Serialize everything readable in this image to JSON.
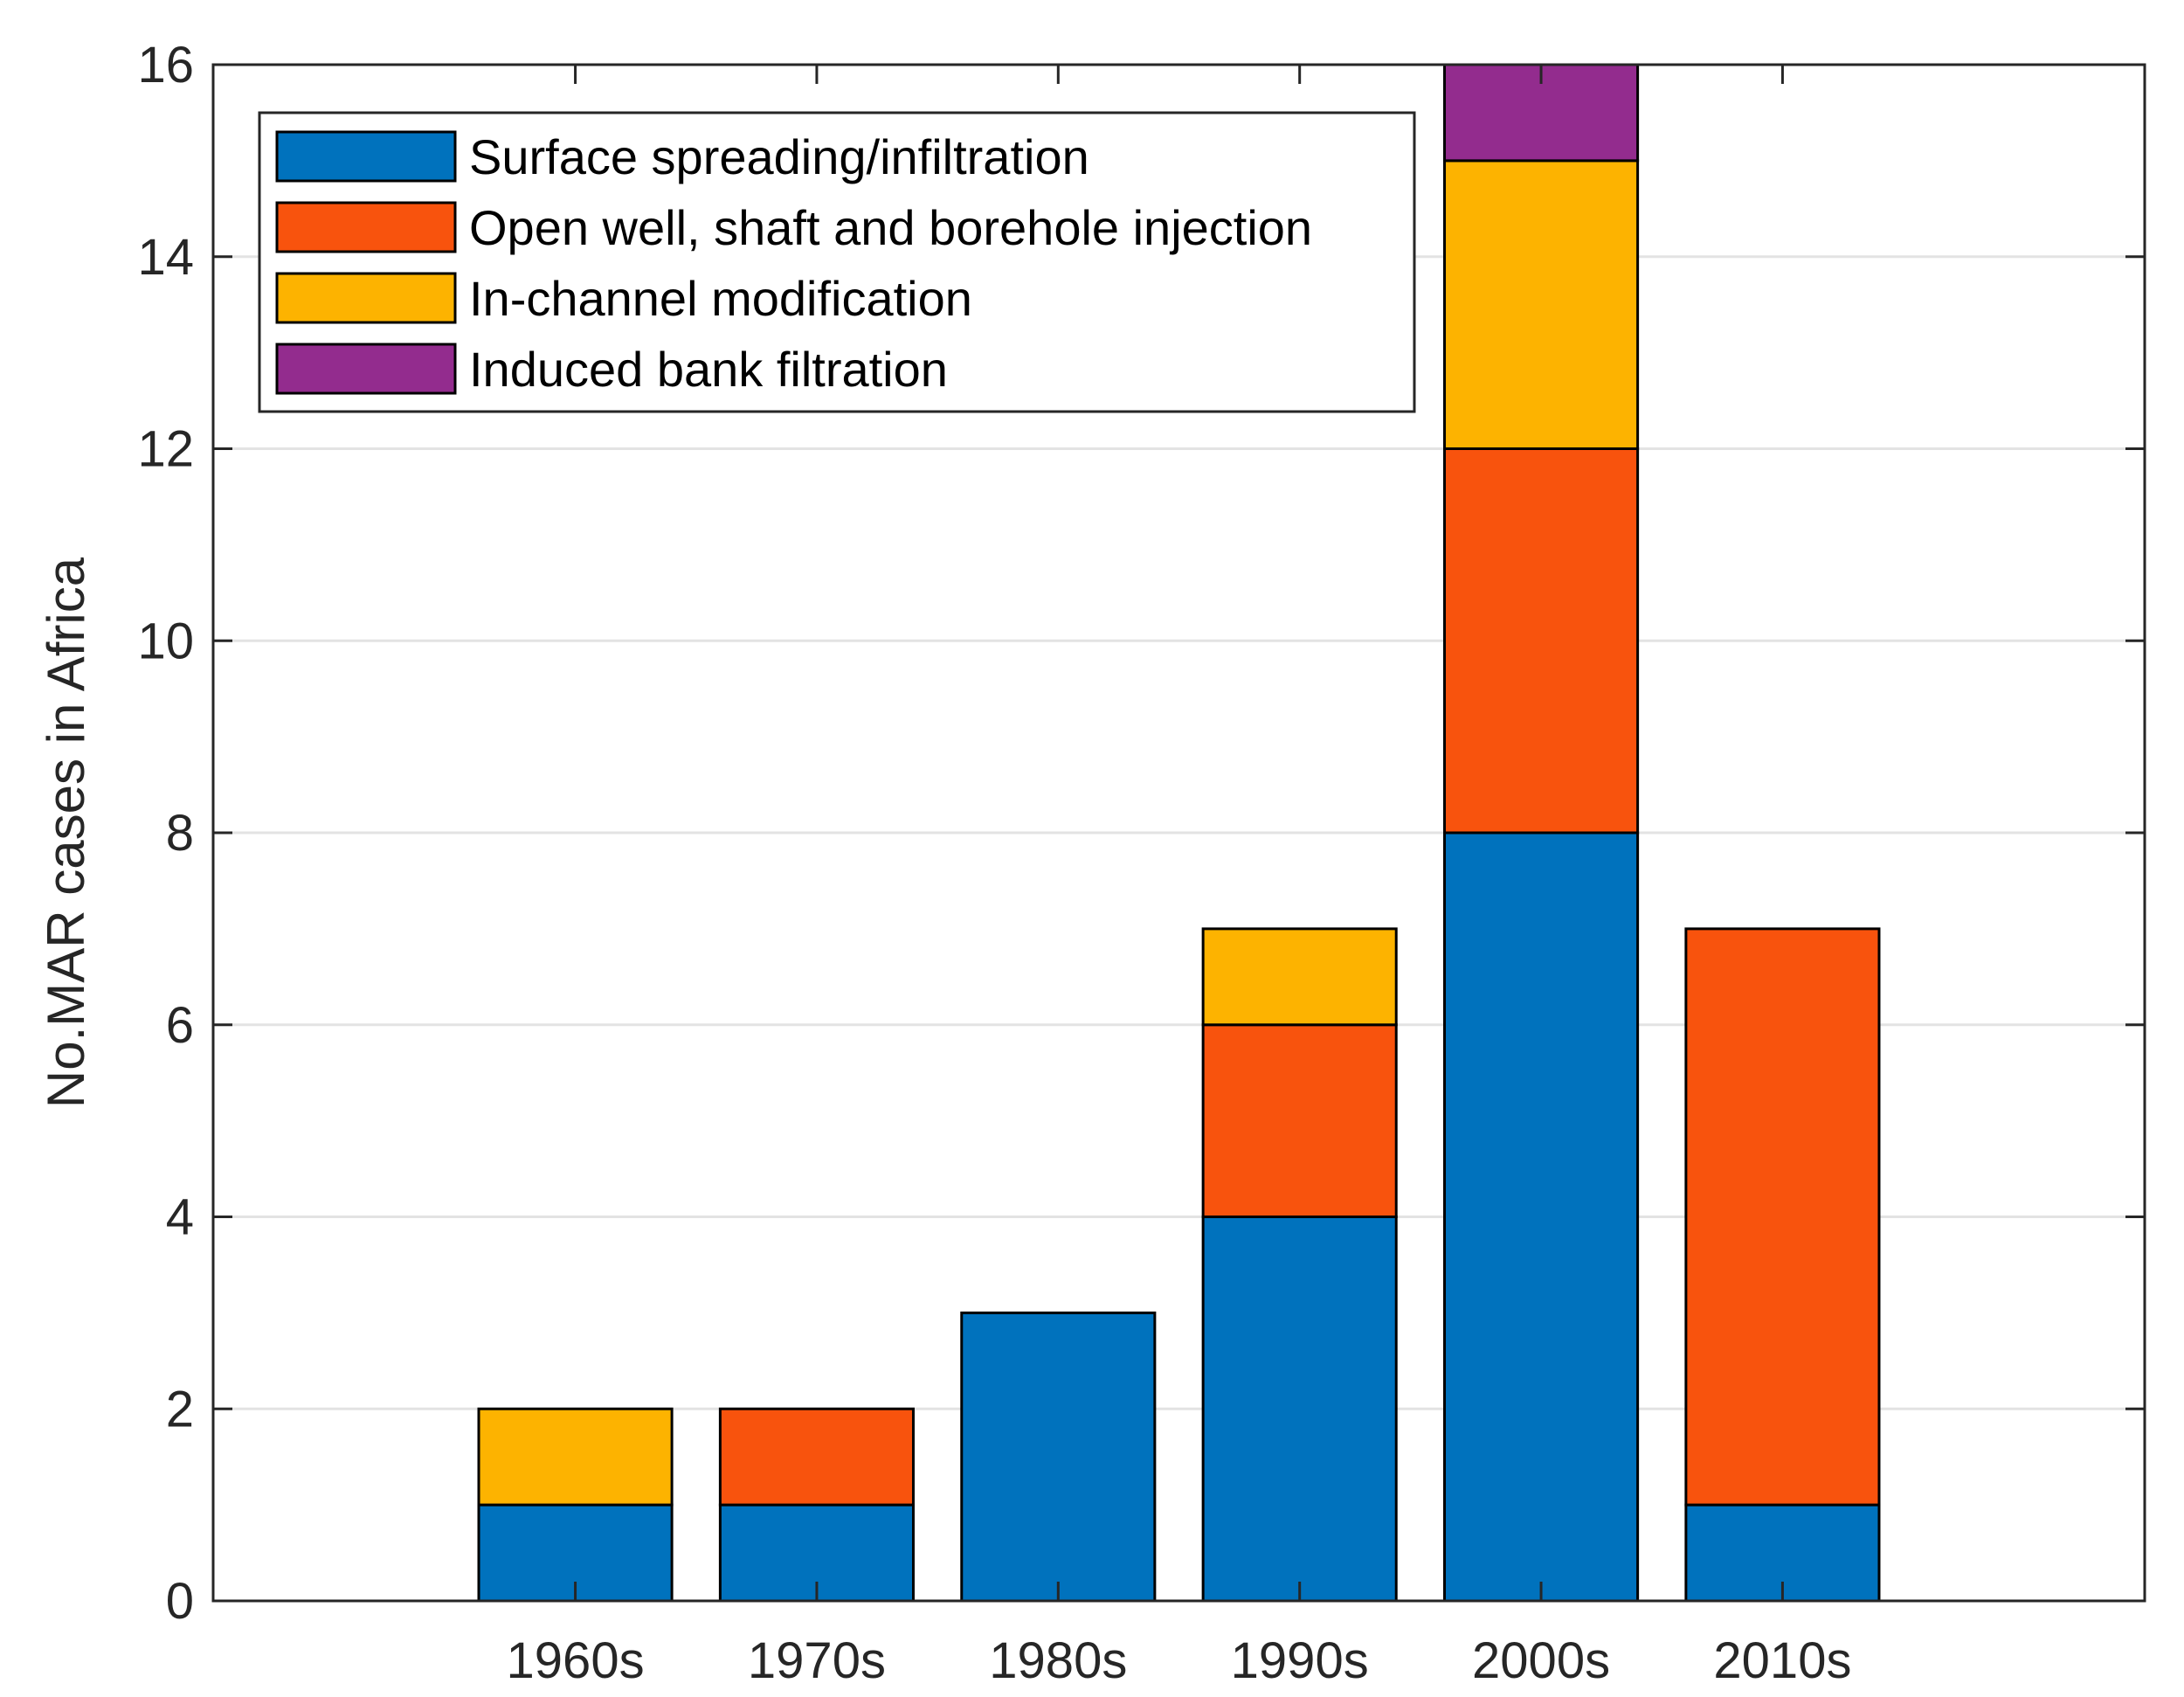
{
  "chart_data": {
    "type": "bar",
    "stacked": true,
    "title": "",
    "xlabel": "",
    "ylabel": "No.MAR cases in Africa",
    "ylim": [
      0,
      16
    ],
    "yticks": [
      0,
      2,
      4,
      6,
      8,
      10,
      12,
      14,
      16
    ],
    "grid": "horizontal",
    "legend_position": "top-left",
    "categories": [
      "1960s",
      "1970s",
      "1980s",
      "1990s",
      "2000s",
      "2010s"
    ],
    "series": [
      {
        "name": "Surface spreading/infiltration",
        "color": "#0072BD",
        "values": [
          1,
          1,
          3,
          4,
          8,
          1
        ]
      },
      {
        "name": "Open well, shaft and borehole injection",
        "color": "#F8530D",
        "values": [
          0,
          1,
          0,
          2,
          4,
          6
        ]
      },
      {
        "name": "In-channel modification",
        "color": "#FDB300",
        "values": [
          1,
          0,
          0,
          1,
          3,
          0
        ]
      },
      {
        "name": "Induced bank filtration",
        "color": "#932C8E",
        "values": [
          0,
          0,
          0,
          0,
          1,
          0
        ]
      }
    ]
  }
}
